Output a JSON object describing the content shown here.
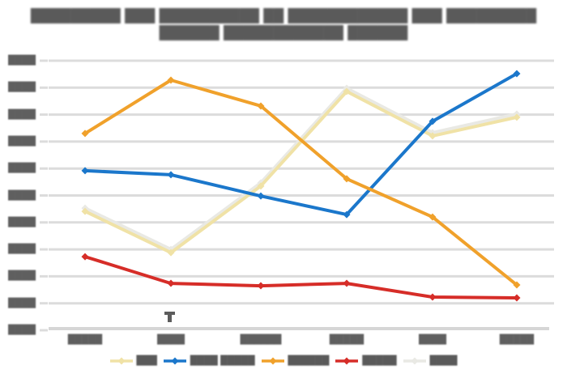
{
  "note": "All text in the source screenshot is blurred and illegible; block glyphs reproduce the position and extent of each text element. Series values are estimated from pixel positions against the 11 unlabeled gridlines, normalized to a 0-100 scale.",
  "title": {
    "line1": "█████████ ███ ██████████ ██ ████████████ ███ █████████",
    "line2": "██████ ████████████ ██████"
  },
  "colors": {
    "background": "#ffffff",
    "grid": "#dcdcdc",
    "axis": "#d6d6d6",
    "text": "#5a5a5a",
    "stray_mark": "#4a4a4a"
  },
  "chart_data": {
    "type": "line",
    "categories": [
      "█████",
      "████",
      "██████",
      "█████",
      "████",
      "█████"
    ],
    "y_tick_labels": [
      "████",
      "████",
      "████",
      "████",
      "████",
      "████",
      "████",
      "████",
      "████",
      "████",
      "████"
    ],
    "ylim": [
      0,
      100
    ],
    "grid": true,
    "marker": "diamond",
    "legend_position": "bottom",
    "series": [
      {
        "name": "███",
        "color": "#f0e2a6",
        "values": [
          44.1,
          28.8,
          53.5,
          88.6,
          72.1,
          79.0
        ]
      },
      {
        "name": "████ █████",
        "color": "#1b77cb",
        "values": [
          59.2,
          57.7,
          49.8,
          42.9,
          77.5,
          95.2
        ]
      },
      {
        "name": "██████",
        "color": "#f0a12b",
        "values": [
          73.0,
          92.8,
          83.2,
          56.2,
          42.0,
          16.8
        ]
      },
      {
        "name": "█████",
        "color": "#d62d28",
        "values": [
          27.3,
          17.4,
          16.5,
          17.4,
          12.3,
          12.0
        ]
      },
      {
        "name": "████",
        "color": "#e9e9e4",
        "values": [
          45.3,
          30.0,
          54.7,
          89.8,
          73.3,
          80.2
        ]
      }
    ]
  }
}
